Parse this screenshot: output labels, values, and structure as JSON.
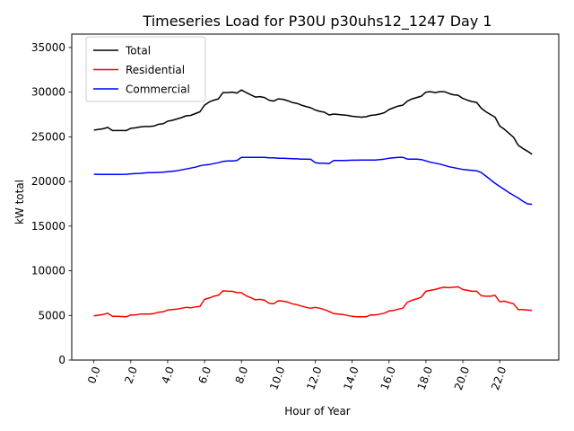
{
  "chart_data": {
    "type": "line",
    "title": "Timeseries Load for P30U p30uhs12_1247  Day 1",
    "xlabel": "Hour of Year",
    "ylabel": "kW total",
    "xlim": [
      -1.2,
      25.2
    ],
    "ylim": [
      0,
      36500
    ],
    "xticks": [
      0,
      2,
      4,
      6,
      8,
      10,
      12,
      14,
      16,
      18,
      20,
      22
    ],
    "xtick_labels": [
      "0.0",
      "2.0",
      "4.0",
      "6.0",
      "8.0",
      "10.0",
      "12.0",
      "14.0",
      "16.0",
      "18.0",
      "20.0",
      "22.0"
    ],
    "yticks": [
      0,
      5000,
      10000,
      15000,
      20000,
      25000,
      30000,
      35000
    ],
    "ytick_labels": [
      "0",
      "5000",
      "10000",
      "15000",
      "20000",
      "25000",
      "30000",
      "35000"
    ],
    "legend_position": "top-left",
    "series": [
      {
        "name": "Total",
        "color": "#000000",
        "x": [
          0,
          0.5,
          0.75,
          1,
          1.25,
          1.75,
          2,
          2.25,
          2.5,
          2.75,
          3,
          3.25,
          3.5,
          3.75,
          4,
          4.25,
          4.5,
          4.75,
          5,
          5.25,
          5.5,
          5.75,
          6,
          6.25,
          6.5,
          6.75,
          7,
          7.25,
          7.5,
          7.75,
          8,
          8.25,
          8.5,
          8.75,
          9,
          9.25,
          9.5,
          9.75,
          10,
          10.25,
          10.5,
          10.75,
          11,
          11.25,
          11.5,
          11.75,
          12,
          12.25,
          12.5,
          12.75,
          13,
          13.25,
          13.5,
          13.75,
          14,
          14.25,
          14.5,
          14.75,
          15,
          15.25,
          15.5,
          15.75,
          16,
          16.25,
          16.5,
          16.75,
          17,
          17.25,
          17.5,
          17.75,
          18,
          18.25,
          18.5,
          18.75,
          19,
          19.25,
          19.5,
          19.75,
          20,
          20.25,
          20.5,
          20.75,
          21,
          21.25,
          21.5,
          21.75,
          22,
          22.25,
          22.5,
          22.75,
          23,
          23.25,
          23.5,
          23.75
        ],
        "values": [
          25750,
          25900,
          26050,
          25700,
          25700,
          25700,
          25950,
          26000,
          26100,
          26150,
          26150,
          26200,
          26400,
          26450,
          26750,
          26850,
          27000,
          27150,
          27350,
          27400,
          27600,
          27800,
          28550,
          28900,
          29100,
          29250,
          29950,
          29950,
          30000,
          29900,
          30250,
          29950,
          29700,
          29450,
          29500,
          29400,
          29100,
          29000,
          29250,
          29200,
          29050,
          28850,
          28750,
          28550,
          28400,
          28250,
          28000,
          27850,
          27750,
          27450,
          27550,
          27500,
          27450,
          27400,
          27300,
          27250,
          27200,
          27250,
          27400,
          27450,
          27550,
          27700,
          28050,
          28250,
          28450,
          28550,
          29000,
          29250,
          29400,
          29550,
          30000,
          30050,
          29950,
          30050,
          30050,
          29850,
          29700,
          29650,
          29300,
          29100,
          28950,
          28850,
          28200,
          27800,
          27500,
          27200,
          26200,
          25850,
          25400,
          24950,
          24050,
          23700,
          23400,
          23050
        ]
      },
      {
        "name": "Residential",
        "color": "#ff0000",
        "x": [
          0,
          0.5,
          0.75,
          1,
          1.25,
          1.75,
          2,
          2.25,
          2.5,
          2.75,
          3,
          3.25,
          3.5,
          3.75,
          4,
          4.25,
          4.5,
          4.75,
          5,
          5.25,
          5.5,
          5.75,
          6,
          6.25,
          6.5,
          6.75,
          7,
          7.25,
          7.5,
          7.75,
          8,
          8.25,
          8.5,
          8.75,
          9,
          9.25,
          9.5,
          9.75,
          10,
          10.25,
          10.5,
          10.75,
          11,
          11.25,
          11.5,
          11.75,
          12,
          12.25,
          12.5,
          12.75,
          13,
          13.25,
          13.5,
          13.75,
          14,
          14.25,
          14.5,
          14.75,
          15,
          15.25,
          15.5,
          15.75,
          16,
          16.25,
          16.5,
          16.75,
          17,
          17.25,
          17.5,
          17.75,
          18,
          18.25,
          18.5,
          18.75,
          19,
          19.25,
          19.5,
          19.75,
          20,
          20.25,
          20.5,
          20.75,
          21,
          21.25,
          21.5,
          21.75,
          22,
          22.25,
          22.5,
          22.75,
          23,
          23.25,
          23.5,
          23.75
        ],
        "values": [
          4950,
          5100,
          5250,
          4900,
          4900,
          4850,
          5050,
          5050,
          5150,
          5150,
          5150,
          5200,
          5350,
          5400,
          5600,
          5650,
          5700,
          5800,
          5900,
          5850,
          5950,
          6000,
          6800,
          6950,
          7150,
          7250,
          7750,
          7700,
          7700,
          7550,
          7550,
          7200,
          7000,
          6750,
          6800,
          6700,
          6350,
          6300,
          6650,
          6600,
          6500,
          6300,
          6200,
          6050,
          5900,
          5800,
          5900,
          5800,
          5650,
          5450,
          5200,
          5150,
          5100,
          5000,
          4900,
          4850,
          4850,
          4850,
          5050,
          5050,
          5150,
          5250,
          5500,
          5550,
          5700,
          5800,
          6500,
          6700,
          6850,
          7050,
          7700,
          7800,
          7900,
          8050,
          8150,
          8100,
          8150,
          8200,
          7900,
          7800,
          7700,
          7700,
          7200,
          7150,
          7150,
          7250,
          6550,
          6600,
          6450,
          6300,
          5650,
          5650,
          5600,
          5550
        ]
      },
      {
        "name": "Commercial",
        "color": "#0000ff",
        "x": [
          0,
          0.5,
          0.75,
          1,
          1.25,
          1.75,
          2,
          2.25,
          2.5,
          2.75,
          3,
          3.25,
          3.5,
          3.75,
          4,
          4.25,
          4.5,
          4.75,
          5,
          5.25,
          5.5,
          5.75,
          6,
          6.25,
          6.5,
          6.75,
          7,
          7.25,
          7.5,
          7.75,
          8,
          8.25,
          8.5,
          8.75,
          9,
          9.25,
          9.5,
          9.75,
          10,
          10.25,
          10.5,
          10.75,
          11,
          11.25,
          11.5,
          11.75,
          12,
          12.25,
          12.5,
          12.75,
          13,
          13.25,
          13.5,
          13.75,
          14,
          14.25,
          14.5,
          14.75,
          15,
          15.25,
          15.5,
          15.75,
          16,
          16.25,
          16.5,
          16.75,
          17,
          17.25,
          17.5,
          17.75,
          18,
          18.25,
          18.5,
          18.75,
          19,
          19.25,
          19.5,
          19.75,
          20,
          20.25,
          20.5,
          20.75,
          21,
          21.25,
          21.5,
          21.75,
          22,
          22.25,
          22.5,
          22.75,
          23,
          23.25,
          23.5,
          23.75
        ],
        "values": [
          20800,
          20780,
          20780,
          20780,
          20790,
          20800,
          20850,
          20880,
          20900,
          20950,
          20980,
          21000,
          21020,
          21050,
          21100,
          21150,
          21200,
          21300,
          21400,
          21500,
          21600,
          21750,
          21850,
          21900,
          22000,
          22100,
          22250,
          22300,
          22300,
          22350,
          22700,
          22700,
          22700,
          22700,
          22700,
          22700,
          22650,
          22650,
          22600,
          22600,
          22570,
          22550,
          22530,
          22500,
          22500,
          22480,
          22100,
          22050,
          22050,
          22000,
          22350,
          22350,
          22350,
          22360,
          22380,
          22380,
          22390,
          22390,
          22400,
          22400,
          22450,
          22500,
          22600,
          22650,
          22700,
          22700,
          22500,
          22500,
          22500,
          22450,
          22300,
          22150,
          22050,
          21950,
          21800,
          21650,
          21550,
          21450,
          21350,
          21300,
          21250,
          21200,
          21000,
          20600,
          20200,
          19800,
          19450,
          19100,
          18750,
          18450,
          18150,
          17800,
          17500,
          17450
        ]
      }
    ]
  }
}
